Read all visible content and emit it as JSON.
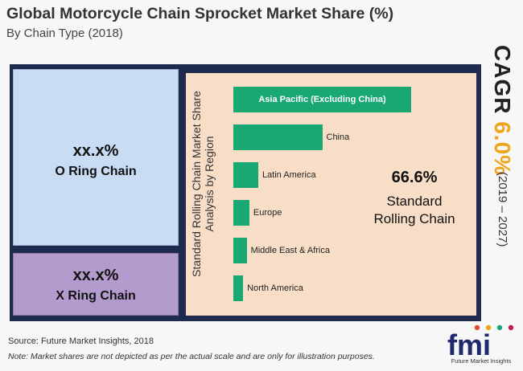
{
  "header": {
    "title": "Global Motorcycle Chain Sprocket Market Share (%)",
    "subtitle": "By Chain Type (2018)"
  },
  "chart_data": [
    {
      "type": "treemap",
      "segments": [
        {
          "name": "O Ring Chain",
          "value_label": "xx.x%",
          "color": "#c8dcf3"
        },
        {
          "name": "X Ring Chain",
          "value_label": "xx.x%",
          "color": "#b39ccd"
        },
        {
          "name": "Standard Rolling Chain",
          "value_label": "66.6%",
          "value": 66.6,
          "color": "#f8dec6"
        }
      ]
    },
    {
      "type": "bar",
      "orientation": "horizontal",
      "title": "Standard Rolling Chain Market Share Analysis by Region",
      "categories": [
        "Asia Pacific (Excluding China)",
        "China",
        "Latin America",
        "Europe",
        "Middle East & Africa",
        "North America"
      ],
      "values": [
        100,
        50,
        14,
        9,
        7.5,
        5.5
      ],
      "value_scale": "relative, not to actual scale",
      "color": "#19a874"
    }
  ],
  "std_segment": {
    "value": "66.6%",
    "label_line1": "Standard",
    "label_line2": "Rolling Chain"
  },
  "cagr": {
    "label": "CAGR",
    "value": "6.0%",
    "years": "(2019 – 2027)"
  },
  "footer": {
    "source": "Source: Future Market Insights, 2018",
    "note": "Note: Market shares are not depicted as per the actual scale and are only for illustration purposes."
  },
  "logo": {
    "text": "fmi",
    "subtitle": "Future Market Insights",
    "dot_colors": [
      "#e04b3a",
      "#f0a41a",
      "#19a874",
      "#c2185b"
    ]
  }
}
